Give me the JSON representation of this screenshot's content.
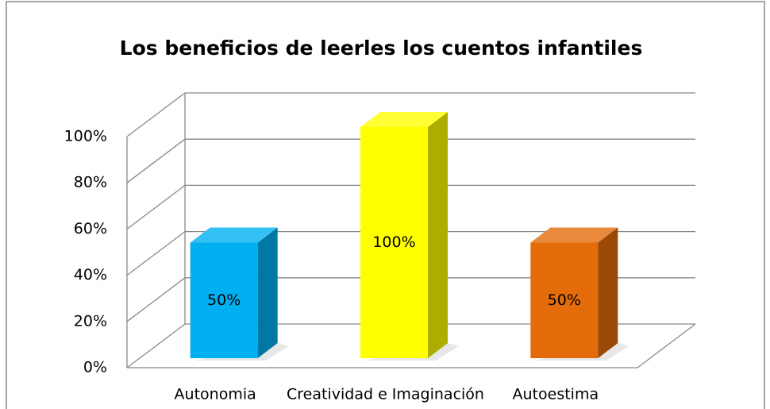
{
  "chart_data": {
    "type": "bar3d",
    "title": "Los beneficios de leerles los cuentos infantiles",
    "categories": [
      "Autonomia",
      "Creatividad e Imaginación",
      "Autoestima"
    ],
    "values": [
      50,
      100,
      50
    ],
    "value_labels": [
      "50%",
      "100%",
      "50%"
    ],
    "colors": [
      "#00b0f0",
      "#ffff00",
      "#e46c0a"
    ],
    "ylim": [
      0,
      100
    ],
    "yticks": [
      {
        "value": 0,
        "label": "0%"
      },
      {
        "value": 20,
        "label": "20%"
      },
      {
        "value": 40,
        "label": "40%"
      },
      {
        "value": 60,
        "label": "60%"
      },
      {
        "value": 80,
        "label": "80%"
      },
      {
        "value": 100,
        "label": "100%"
      }
    ],
    "grid": true
  }
}
